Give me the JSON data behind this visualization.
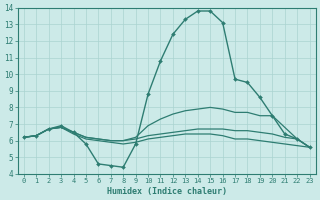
{
  "title": "",
  "xlabel": "Humidex (Indice chaleur)",
  "ylabel": "",
  "xlim": [
    -0.5,
    23.5
  ],
  "ylim": [
    4,
    14
  ],
  "xticks": [
    0,
    1,
    2,
    3,
    4,
    5,
    6,
    7,
    8,
    9,
    10,
    11,
    12,
    13,
    14,
    15,
    16,
    17,
    18,
    19,
    20,
    21,
    22,
    23
  ],
  "yticks": [
    4,
    5,
    6,
    7,
    8,
    9,
    10,
    11,
    12,
    13,
    14
  ],
  "background_color": "#cceae8",
  "grid_color": "#aad4d0",
  "line_color": "#2e7d72",
  "series": [
    {
      "x": [
        0,
        1,
        2,
        3,
        4,
        5,
        6,
        7,
        8,
        9,
        10,
        11,
        12,
        13,
        14,
        15,
        16,
        17,
        18,
        19,
        20,
        21,
        22,
        23
      ],
      "y": [
        6.2,
        6.3,
        6.7,
        6.9,
        6.5,
        5.8,
        4.6,
        4.5,
        4.4,
        5.8,
        8.8,
        10.8,
        12.4,
        13.3,
        13.8,
        13.8,
        13.1,
        9.7,
        9.5,
        8.6,
        7.5,
        6.4,
        6.1,
        5.6
      ],
      "marker": "D",
      "markersize": 2.0,
      "linewidth": 1.0
    },
    {
      "x": [
        0,
        1,
        2,
        3,
        4,
        5,
        6,
        7,
        8,
        9,
        10,
        11,
        12,
        13,
        14,
        15,
        16,
        17,
        18,
        19,
        20,
        21,
        22,
        23
      ],
      "y": [
        6.2,
        6.3,
        6.7,
        6.8,
        6.5,
        6.2,
        6.1,
        6.0,
        6.0,
        6.1,
        6.3,
        6.4,
        6.5,
        6.6,
        6.7,
        6.7,
        6.7,
        6.6,
        6.6,
        6.5,
        6.4,
        6.2,
        6.1,
        5.6
      ],
      "marker": null,
      "linewidth": 0.9
    },
    {
      "x": [
        0,
        1,
        2,
        3,
        4,
        5,
        6,
        7,
        8,
        9,
        10,
        11,
        12,
        13,
        14,
        15,
        16,
        17,
        18,
        19,
        20,
        21,
        22,
        23
      ],
      "y": [
        6.2,
        6.3,
        6.7,
        6.8,
        6.5,
        6.2,
        6.1,
        6.0,
        6.0,
        6.2,
        6.9,
        7.3,
        7.6,
        7.8,
        7.9,
        8.0,
        7.9,
        7.7,
        7.7,
        7.5,
        7.5,
        6.8,
        6.1,
        5.6
      ],
      "marker": null,
      "linewidth": 0.9
    },
    {
      "x": [
        0,
        1,
        2,
        3,
        4,
        5,
        6,
        7,
        8,
        9,
        10,
        11,
        12,
        13,
        14,
        15,
        16,
        17,
        18,
        19,
        20,
        21,
        22,
        23
      ],
      "y": [
        6.2,
        6.3,
        6.7,
        6.8,
        6.4,
        6.1,
        6.0,
        5.9,
        5.8,
        5.9,
        6.1,
        6.2,
        6.3,
        6.4,
        6.4,
        6.4,
        6.3,
        6.1,
        6.1,
        6.0,
        5.9,
        5.8,
        5.7,
        5.6
      ],
      "marker": null,
      "linewidth": 0.9
    }
  ]
}
